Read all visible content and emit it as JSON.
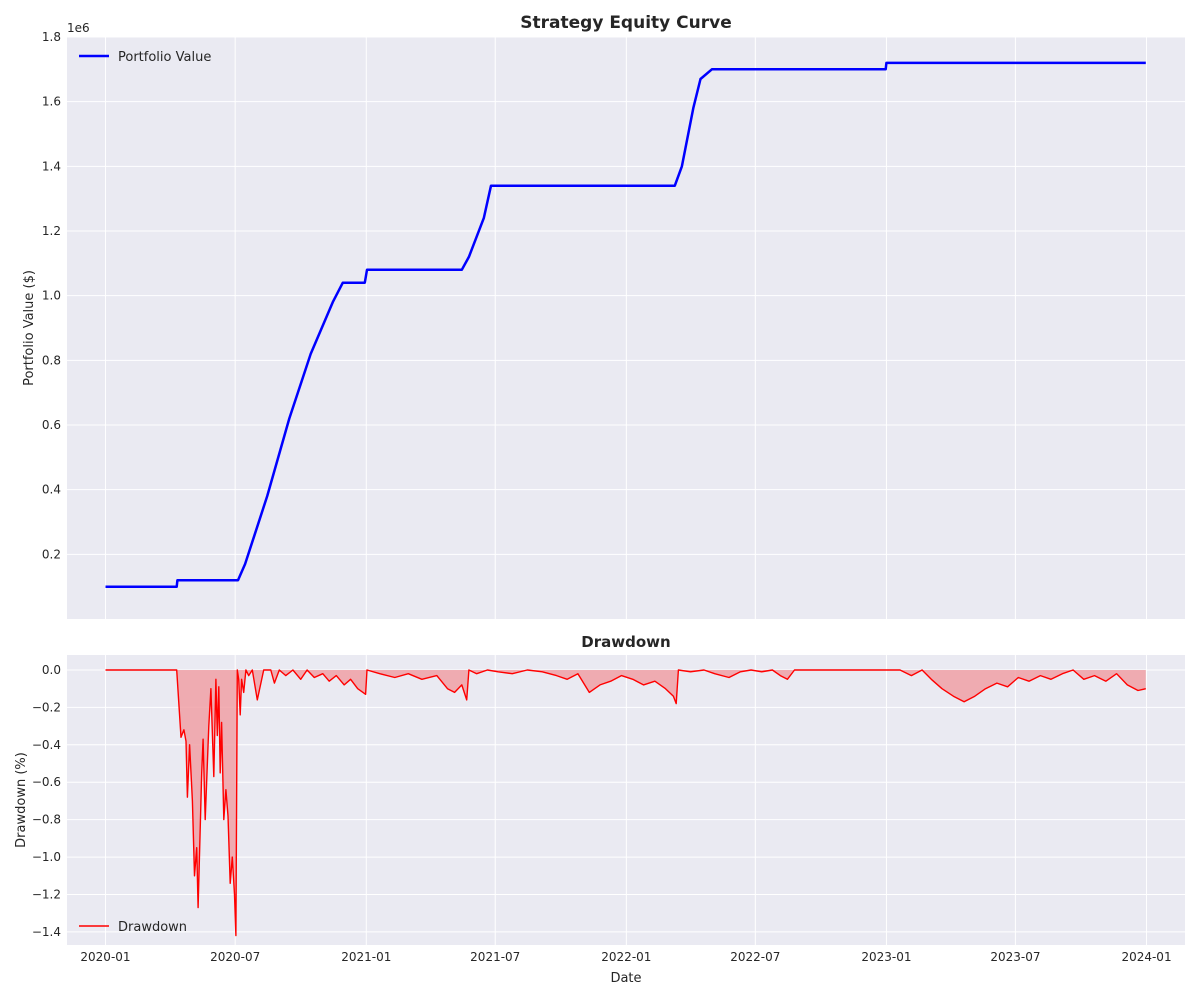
{
  "chart_data": [
    {
      "type": "line",
      "title": "Strategy Equity Curve",
      "xlabel": "",
      "ylabel": "Portfolio Value ($)",
      "y_offset_label": "1e6",
      "xlim": [
        "2019-11-08",
        "2024-02-24"
      ],
      "ylim": [
        0.0,
        1.8
      ],
      "yticks": [
        0.2,
        0.4,
        0.6,
        0.8,
        1.0,
        1.2,
        1.4,
        1.6,
        1.8
      ],
      "yticks_labels": [
        "0.2",
        "0.4",
        "0.6",
        "0.8",
        "1.0",
        "1.2",
        "1.4",
        "1.6",
        "1.8"
      ],
      "grid": true,
      "legend_position": "top-left",
      "series": [
        {
          "name": "Portfolio Value",
          "color": "#0000ff",
          "x": [
            "2020-01-01",
            "2020-04-10",
            "2020-04-11",
            "2020-07-05",
            "2020-07-15",
            "2020-08-15",
            "2020-09-15",
            "2020-10-15",
            "2020-11-15",
            "2020-11-29",
            "2020-12-30",
            "2021-01-02",
            "2021-02-15",
            "2021-04-15",
            "2021-05-15",
            "2021-05-25",
            "2021-06-15",
            "2021-06-25",
            "2021-08-15",
            "2021-10-01",
            "2021-12-01",
            "2022-02-01",
            "2022-03-10",
            "2022-03-20",
            "2022-04-05",
            "2022-04-15",
            "2022-05-01",
            "2022-07-01",
            "2022-10-01",
            "2022-12-31",
            "2023-01-01",
            "2023-04-01",
            "2023-07-01",
            "2023-10-01",
            "2023-12-31"
          ],
          "values": [
            0.1,
            0.1,
            0.12,
            0.12,
            0.17,
            0.38,
            0.62,
            0.82,
            0.98,
            1.04,
            1.04,
            1.08,
            1.08,
            1.08,
            1.08,
            1.12,
            1.24,
            1.34,
            1.34,
            1.34,
            1.34,
            1.34,
            1.34,
            1.4,
            1.58,
            1.67,
            1.7,
            1.7,
            1.7,
            1.7,
            1.72,
            1.72,
            1.72,
            1.72,
            1.72
          ]
        }
      ]
    },
    {
      "type": "area",
      "title": "Drawdown",
      "xlabel": "Date",
      "ylabel": "Drawdown (%)",
      "xlim": [
        "2019-11-08",
        "2024-02-24"
      ],
      "ylim": [
        -1.47,
        0.08
      ],
      "xticks": [
        "2020-01",
        "2020-07",
        "2021-01",
        "2021-07",
        "2022-01",
        "2022-07",
        "2023-01",
        "2023-07",
        "2024-01"
      ],
      "yticks": [
        -1.4,
        -1.2,
        -1.0,
        -0.8,
        -0.6,
        -0.4,
        -0.2,
        0.0
      ],
      "yticks_labels": [
        "−1.4",
        "−1.2",
        "−1.0",
        "−0.8",
        "−0.6",
        "−0.4",
        "−0.2",
        "0.0"
      ],
      "grid": true,
      "legend_position": "bottom-left",
      "series": [
        {
          "name": "Drawdown",
          "color": "#ff0000",
          "fill_color": "#f0a0a6",
          "x": [
            "2020-01-01",
            "2020-04-10",
            "2020-04-16",
            "2020-04-20",
            "2020-04-23",
            "2020-04-25",
            "2020-04-28",
            "2020-05-02",
            "2020-05-05",
            "2020-05-08",
            "2020-05-10",
            "2020-05-13",
            "2020-05-15",
            "2020-05-17",
            "2020-05-20",
            "2020-05-25",
            "2020-05-28",
            "2020-06-01",
            "2020-06-04",
            "2020-06-06",
            "2020-06-08",
            "2020-06-10",
            "2020-06-12",
            "2020-06-15",
            "2020-06-18",
            "2020-06-21",
            "2020-06-24",
            "2020-06-27",
            "2020-06-30",
            "2020-07-02",
            "2020-07-04",
            "2020-07-06",
            "2020-07-08",
            "2020-07-10",
            "2020-07-13",
            "2020-07-16",
            "2020-07-20",
            "2020-07-25",
            "2020-08-01",
            "2020-08-10",
            "2020-08-20",
            "2020-08-25",
            "2020-09-01",
            "2020-09-10",
            "2020-09-20",
            "2020-10-01",
            "2020-10-10",
            "2020-10-20",
            "2020-11-01",
            "2020-11-10",
            "2020-11-20",
            "2020-12-01",
            "2020-12-10",
            "2020-12-20",
            "2020-12-31",
            "2021-01-02",
            "2021-01-20",
            "2021-02-10",
            "2021-03-01",
            "2021-03-20",
            "2021-04-10",
            "2021-04-25",
            "2021-05-05",
            "2021-05-15",
            "2021-05-22",
            "2021-05-25",
            "2021-06-05",
            "2021-06-20",
            "2021-07-05",
            "2021-07-25",
            "2021-08-15",
            "2021-09-05",
            "2021-09-25",
            "2021-10-10",
            "2021-10-25",
            "2021-11-10",
            "2021-11-25",
            "2021-12-10",
            "2021-12-25",
            "2022-01-10",
            "2022-01-25",
            "2022-02-10",
            "2022-02-25",
            "2022-03-08",
            "2022-03-12",
            "2022-03-15",
            "2022-04-01",
            "2022-04-20",
            "2022-05-05",
            "2022-05-25",
            "2022-06-10",
            "2022-06-25",
            "2022-07-10",
            "2022-07-25",
            "2022-08-05",
            "2022-08-15",
            "2022-08-25",
            "2022-09-01",
            "2022-10-01",
            "2022-11-01",
            "2022-12-01",
            "2023-01-01",
            "2023-01-20",
            "2023-02-05",
            "2023-02-20",
            "2023-03-05",
            "2023-03-20",
            "2023-04-05",
            "2023-04-20",
            "2023-05-05",
            "2023-05-20",
            "2023-06-05",
            "2023-06-20",
            "2023-07-05",
            "2023-07-20",
            "2023-08-05",
            "2023-08-20",
            "2023-09-05",
            "2023-09-20",
            "2023-10-05",
            "2023-10-20",
            "2023-11-05",
            "2023-11-20",
            "2023-12-05",
            "2023-12-20",
            "2023-12-31"
          ],
          "values": [
            0.0,
            0.0,
            -0.36,
            -0.32,
            -0.38,
            -0.68,
            -0.4,
            -0.7,
            -1.1,
            -0.95,
            -1.27,
            -0.85,
            -0.55,
            -0.37,
            -0.8,
            -0.3,
            -0.1,
            -0.57,
            -0.05,
            -0.35,
            -0.09,
            -0.55,
            -0.28,
            -0.8,
            -0.64,
            -0.78,
            -1.14,
            -1.0,
            -1.2,
            -1.42,
            0.0,
            -0.05,
            -0.24,
            -0.05,
            -0.12,
            0.0,
            -0.03,
            0.0,
            -0.16,
            0.0,
            0.0,
            -0.07,
            0.0,
            -0.03,
            0.0,
            -0.05,
            0.0,
            -0.04,
            -0.02,
            -0.06,
            -0.03,
            -0.08,
            -0.05,
            -0.1,
            -0.13,
            0.0,
            -0.02,
            -0.04,
            -0.02,
            -0.05,
            -0.03,
            -0.1,
            -0.12,
            -0.08,
            -0.16,
            0.0,
            -0.02,
            0.0,
            -0.01,
            -0.02,
            0.0,
            -0.01,
            -0.03,
            -0.05,
            -0.02,
            -0.12,
            -0.08,
            -0.06,
            -0.03,
            -0.05,
            -0.08,
            -0.06,
            -0.1,
            -0.14,
            -0.18,
            0.0,
            -0.01,
            0.0,
            -0.02,
            -0.04,
            -0.01,
            0.0,
            -0.01,
            0.0,
            -0.03,
            -0.05,
            0.0,
            0.0,
            0.0,
            0.0,
            0.0,
            0.0,
            0.0,
            -0.03,
            0.0,
            -0.05,
            -0.1,
            -0.14,
            -0.17,
            -0.14,
            -0.1,
            -0.07,
            -0.09,
            -0.04,
            -0.06,
            -0.03,
            -0.05,
            -0.02,
            0.0,
            -0.05,
            -0.03,
            -0.06,
            -0.02,
            -0.08,
            -0.11,
            -0.1
          ]
        }
      ]
    }
  ]
}
